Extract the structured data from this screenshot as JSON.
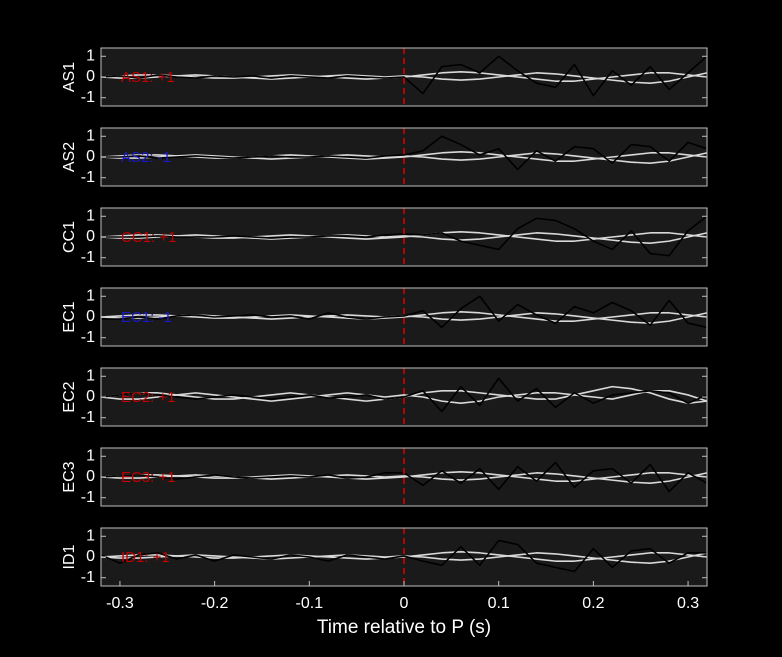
{
  "chart_data": [
    {
      "type": "line",
      "ylabel": "AS1",
      "annotation": "AS1: +1",
      "annotation_color": "#c00000",
      "x": [
        -0.32,
        -0.3,
        -0.28,
        -0.26,
        -0.24,
        -0.22,
        -0.2,
        -0.18,
        -0.16,
        -0.14,
        -0.12,
        -0.1,
        -0.08,
        -0.06,
        -0.04,
        -0.02,
        0,
        0.02,
        0.04,
        0.06,
        0.08,
        0.1,
        0.12,
        0.14,
        0.16,
        0.18,
        0.2,
        0.22,
        0.24,
        0.26,
        0.28,
        0.3,
        0.32
      ],
      "series": [
        {
          "color": "#d9d9d9",
          "values": [
            0,
            0.05,
            0.1,
            0.1,
            0.05,
            0,
            -0.05,
            -0.05,
            0,
            0.05,
            0.1,
            0.05,
            0,
            -0.05,
            -0.1,
            -0.05,
            0,
            0.1,
            0.2,
            0.25,
            0.2,
            0.1,
            0,
            -0.1,
            -0.2,
            -0.2,
            -0.1,
            0,
            0.1,
            0.2,
            0.2,
            0.1,
            0
          ]
        },
        {
          "color": "#d9d9d9",
          "values": [
            0,
            -0.05,
            -0.05,
            0,
            0.05,
            0.1,
            0.05,
            0,
            -0.05,
            -0.1,
            -0.05,
            0,
            0.05,
            0.1,
            0.05,
            0,
            0.05,
            0,
            -0.1,
            -0.15,
            -0.1,
            0,
            0.1,
            0.2,
            0.15,
            0.05,
            -0.05,
            -0.15,
            -0.25,
            -0.3,
            -0.2,
            0,
            0.2
          ]
        },
        {
          "color": "#000000",
          "values": [
            0,
            0.05,
            -0.05,
            0.1,
            0,
            -0.05,
            0.05,
            0,
            0.05,
            -0.05,
            0.05,
            0,
            -0.05,
            0.05,
            0,
            -0.05,
            0,
            -0.8,
            0.5,
            0.6,
            0.2,
            1.0,
            0.3,
            -0.3,
            -0.5,
            0.6,
            -0.9,
            0.3,
            -0.4,
            0.5,
            -0.6,
            0.2,
            1.0
          ]
        }
      ],
      "vline": 0,
      "vline_color": "#e00000",
      "xlim": [
        -0.32,
        0.32
      ],
      "ylim": [
        -1.4,
        1.4
      ],
      "yticks": [
        -1,
        0,
        1
      ]
    },
    {
      "type": "line",
      "ylabel": "AS2",
      "annotation": "AS2: -1",
      "annotation_color": "#1a1ac8",
      "x": [
        -0.32,
        -0.3,
        -0.28,
        -0.26,
        -0.24,
        -0.22,
        -0.2,
        -0.18,
        -0.16,
        -0.14,
        -0.12,
        -0.1,
        -0.08,
        -0.06,
        -0.04,
        -0.02,
        0,
        0.02,
        0.04,
        0.06,
        0.08,
        0.1,
        0.12,
        0.14,
        0.16,
        0.18,
        0.2,
        0.22,
        0.24,
        0.26,
        0.28,
        0.3,
        0.32
      ],
      "series": [
        {
          "color": "#d9d9d9",
          "values": [
            0,
            0.05,
            0.1,
            0.1,
            0.05,
            0,
            -0.05,
            -0.05,
            0,
            0.05,
            0.1,
            0.05,
            0,
            -0.05,
            -0.1,
            -0.05,
            0,
            0.1,
            0.2,
            0.25,
            0.2,
            0.1,
            0,
            -0.1,
            -0.2,
            -0.2,
            -0.1,
            0,
            0.1,
            0.2,
            0.2,
            0.1,
            0
          ]
        },
        {
          "color": "#d9d9d9",
          "values": [
            0,
            -0.05,
            -0.05,
            0,
            0.05,
            0.1,
            0.05,
            0,
            -0.05,
            -0.1,
            -0.05,
            0,
            0.05,
            0.1,
            0.05,
            0,
            0.05,
            0,
            -0.1,
            -0.15,
            -0.1,
            0,
            0.1,
            0.2,
            0.15,
            0.05,
            -0.05,
            -0.15,
            -0.25,
            -0.3,
            -0.2,
            0,
            0.2
          ]
        },
        {
          "color": "#000000",
          "values": [
            0,
            0,
            0.05,
            -0.05,
            0,
            0.05,
            0,
            -0.05,
            0,
            0.05,
            0,
            0,
            0.05,
            0,
            -0.05,
            0.05,
            0.1,
            0.3,
            1.0,
            0.6,
            0.1,
            0.4,
            -0.6,
            0.3,
            -0.2,
            0.5,
            0.4,
            -0.3,
            0.6,
            0.5,
            -0.2,
            0.7,
            0.4
          ]
        }
      ],
      "vline": 0,
      "vline_color": "#e00000",
      "xlim": [
        -0.32,
        0.32
      ],
      "ylim": [
        -1.4,
        1.4
      ],
      "yticks": [
        -1,
        0,
        1
      ]
    },
    {
      "type": "line",
      "ylabel": "CC1",
      "annotation": "CC1: +1",
      "annotation_color": "#c00000",
      "x": [
        -0.32,
        -0.3,
        -0.28,
        -0.26,
        -0.24,
        -0.22,
        -0.2,
        -0.18,
        -0.16,
        -0.14,
        -0.12,
        -0.1,
        -0.08,
        -0.06,
        -0.04,
        -0.02,
        0,
        0.02,
        0.04,
        0.06,
        0.08,
        0.1,
        0.12,
        0.14,
        0.16,
        0.18,
        0.2,
        0.22,
        0.24,
        0.26,
        0.28,
        0.3,
        0.32
      ],
      "series": [
        {
          "color": "#d9d9d9",
          "values": [
            0,
            0.05,
            0.1,
            0.1,
            0.05,
            0,
            -0.05,
            -0.05,
            0,
            0.05,
            0.1,
            0.05,
            0,
            -0.05,
            -0.1,
            -0.05,
            0,
            0.1,
            0.2,
            0.25,
            0.2,
            0.1,
            0,
            -0.1,
            -0.2,
            -0.2,
            -0.1,
            0,
            0.1,
            0.2,
            0.2,
            0.1,
            0
          ]
        },
        {
          "color": "#d9d9d9",
          "values": [
            0,
            -0.05,
            -0.05,
            0,
            0.05,
            0.1,
            0.05,
            0,
            -0.05,
            -0.1,
            -0.05,
            0,
            0.05,
            0.1,
            0.05,
            0,
            0.05,
            0,
            -0.1,
            -0.15,
            -0.1,
            0,
            0.1,
            0.2,
            0.15,
            0.05,
            -0.05,
            -0.15,
            -0.25,
            -0.3,
            -0.2,
            0,
            0.2
          ]
        },
        {
          "color": "#000000",
          "values": [
            0,
            0,
            0,
            0.05,
            0,
            0,
            0,
            0.05,
            0,
            -0.05,
            0,
            0,
            0.05,
            0.05,
            0,
            0.1,
            0.15,
            0.1,
            0.2,
            -0.2,
            -0.4,
            -0.6,
            0.4,
            0.9,
            0.8,
            0.4,
            -0.2,
            -0.6,
            0.3,
            -0.8,
            -0.9,
            0.3,
            1.0
          ]
        }
      ],
      "vline": 0,
      "vline_color": "#e00000",
      "xlim": [
        -0.32,
        0.32
      ],
      "ylim": [
        -1.4,
        1.4
      ],
      "yticks": [
        -1,
        0,
        1
      ]
    },
    {
      "type": "line",
      "ylabel": "EC1",
      "annotation": "EC1: -1",
      "annotation_color": "#1a1ac8",
      "x": [
        -0.32,
        -0.3,
        -0.28,
        -0.26,
        -0.24,
        -0.22,
        -0.2,
        -0.18,
        -0.16,
        -0.14,
        -0.12,
        -0.1,
        -0.08,
        -0.06,
        -0.04,
        -0.02,
        0,
        0.02,
        0.04,
        0.06,
        0.08,
        0.1,
        0.12,
        0.14,
        0.16,
        0.18,
        0.2,
        0.22,
        0.24,
        0.26,
        0.28,
        0.3,
        0.32
      ],
      "series": [
        {
          "color": "#d9d9d9",
          "values": [
            0,
            0.05,
            0.1,
            0.1,
            0.05,
            0,
            -0.05,
            -0.05,
            0,
            0.05,
            0.1,
            0.05,
            0,
            -0.05,
            -0.1,
            -0.05,
            0,
            0.1,
            0.2,
            0.25,
            0.2,
            0.1,
            0,
            -0.1,
            -0.2,
            -0.2,
            -0.1,
            0,
            0.1,
            0.2,
            0.2,
            0.1,
            0
          ]
        },
        {
          "color": "#d9d9d9",
          "values": [
            0,
            -0.05,
            -0.05,
            0,
            0.05,
            0.1,
            0.05,
            0,
            -0.05,
            -0.1,
            -0.05,
            0,
            0.05,
            0.1,
            0.05,
            0,
            0.05,
            0,
            -0.1,
            -0.15,
            -0.1,
            0,
            0.1,
            0.2,
            0.15,
            0.05,
            -0.05,
            -0.15,
            -0.25,
            -0.3,
            -0.2,
            0,
            0.2
          ]
        },
        {
          "color": "#000000",
          "values": [
            -0.1,
            -0.1,
            0,
            -0.1,
            0.05,
            0.1,
            0,
            0.05,
            0.1,
            0,
            0.05,
            -0.1,
            0.2,
            0,
            -0.1,
            0,
            0.05,
            0.3,
            -0.5,
            0.4,
            1.0,
            -0.2,
            0.6,
            0.1,
            -0.3,
            0.5,
            0.2,
            0.7,
            0.3,
            -0.4,
            0.8,
            -0.3,
            -0.5
          ]
        }
      ],
      "vline": 0,
      "vline_color": "#e00000",
      "xlim": [
        -0.32,
        0.32
      ],
      "ylim": [
        -1.4,
        1.4
      ],
      "yticks": [
        -1,
        0,
        1
      ]
    },
    {
      "type": "line",
      "ylabel": "EC2",
      "annotation": "EC2: +1",
      "annotation_color": "#c00000",
      "x": [
        -0.32,
        -0.3,
        -0.28,
        -0.26,
        -0.24,
        -0.22,
        -0.2,
        -0.18,
        -0.16,
        -0.14,
        -0.12,
        -0.1,
        -0.08,
        -0.06,
        -0.04,
        -0.02,
        0,
        0.02,
        0.04,
        0.06,
        0.08,
        0.1,
        0.12,
        0.14,
        0.16,
        0.18,
        0.2,
        0.22,
        0.24,
        0.26,
        0.28,
        0.3,
        0.32
      ],
      "series": [
        {
          "color": "#d9d9d9",
          "values": [
            0,
            0.1,
            0.2,
            0.2,
            0.1,
            0,
            -0.1,
            -0.1,
            0,
            0.1,
            0.2,
            0.1,
            0,
            -0.1,
            -0.2,
            -0.1,
            0,
            0.2,
            0.3,
            0.3,
            0.2,
            0.1,
            0,
            -0.1,
            -0.1,
            0.1,
            0.3,
            0.5,
            0.4,
            0.2,
            -0.1,
            -0.3,
            -0.2
          ]
        },
        {
          "color": "#d9d9d9",
          "values": [
            0,
            -0.1,
            -0.1,
            0,
            0.1,
            0.2,
            0.1,
            0,
            -0.1,
            -0.2,
            -0.1,
            0,
            0.1,
            0.2,
            0.1,
            0,
            0.1,
            0,
            -0.2,
            -0.3,
            -0.2,
            0,
            0.1,
            0.2,
            0.2,
            0.1,
            0,
            -0.1,
            0.1,
            0.3,
            0.3,
            0.1,
            -0.2
          ]
        },
        {
          "color": "#000000",
          "values": [
            0,
            0.1,
            0.2,
            0.1,
            0,
            -0.1,
            0,
            0.1,
            0,
            -0.1,
            0,
            0.1,
            -0.05,
            0,
            0.1,
            -0.1,
            0,
            0.3,
            -0.7,
            0.5,
            -0.4,
            0.9,
            -0.2,
            0.4,
            -0.5,
            0.2,
            -0.3,
            0.1,
            0.2,
            0.3,
            0.2,
            -0.3,
            0.1
          ]
        }
      ],
      "vline": 0,
      "vline_color": "#e00000",
      "xlim": [
        -0.32,
        0.32
      ],
      "ylim": [
        -1.4,
        1.4
      ],
      "yticks": [
        -1,
        0,
        1
      ]
    },
    {
      "type": "line",
      "ylabel": "EC3",
      "annotation": "EC3: +1",
      "annotation_color": "#c00000",
      "x": [
        -0.32,
        -0.3,
        -0.28,
        -0.26,
        -0.24,
        -0.22,
        -0.2,
        -0.18,
        -0.16,
        -0.14,
        -0.12,
        -0.1,
        -0.08,
        -0.06,
        -0.04,
        -0.02,
        0,
        0.02,
        0.04,
        0.06,
        0.08,
        0.1,
        0.12,
        0.14,
        0.16,
        0.18,
        0.2,
        0.22,
        0.24,
        0.26,
        0.28,
        0.3,
        0.32
      ],
      "series": [
        {
          "color": "#d9d9d9",
          "values": [
            0,
            0.05,
            0.1,
            0.1,
            0.05,
            0,
            -0.05,
            -0.05,
            0,
            0.05,
            0.1,
            0.05,
            0,
            -0.05,
            -0.1,
            -0.05,
            0,
            0.1,
            0.2,
            0.25,
            0.2,
            0.1,
            0,
            -0.1,
            -0.2,
            -0.2,
            -0.1,
            0,
            0.1,
            0.2,
            0.2,
            0.1,
            0
          ]
        },
        {
          "color": "#d9d9d9",
          "values": [
            0,
            -0.05,
            -0.05,
            0,
            0.05,
            0.1,
            0.05,
            0,
            -0.05,
            -0.1,
            -0.05,
            0,
            0.05,
            0.1,
            0.05,
            0,
            0.05,
            0,
            -0.1,
            -0.15,
            -0.1,
            0,
            0.1,
            0.2,
            0.15,
            0.05,
            -0.05,
            -0.15,
            -0.25,
            -0.3,
            -0.2,
            0,
            0.2
          ]
        },
        {
          "color": "#000000",
          "values": [
            0,
            0.05,
            0.1,
            0,
            -0.1,
            0,
            0.1,
            0,
            -0.05,
            0,
            0.05,
            0,
            0.1,
            -0.05,
            0,
            0.2,
            0.2,
            -0.4,
            0.3,
            -0.3,
            0.4,
            -0.6,
            0.5,
            -0.2,
            0.7,
            -0.5,
            0.3,
            0.4,
            -0.3,
            0.6,
            -0.7,
            0.2,
            -0.3
          ]
        }
      ],
      "vline": 0,
      "vline_color": "#e00000",
      "xlim": [
        -0.32,
        0.32
      ],
      "ylim": [
        -1.4,
        1.4
      ],
      "yticks": [
        -1,
        0,
        1
      ]
    },
    {
      "type": "line",
      "ylabel": "ID1",
      "annotation": "ID1: +1",
      "annotation_color": "#c00000",
      "x": [
        -0.32,
        -0.3,
        -0.28,
        -0.26,
        -0.24,
        -0.22,
        -0.2,
        -0.18,
        -0.16,
        -0.14,
        -0.12,
        -0.1,
        -0.08,
        -0.06,
        -0.04,
        -0.02,
        0,
        0.02,
        0.04,
        0.06,
        0.08,
        0.1,
        0.12,
        0.14,
        0.16,
        0.18,
        0.2,
        0.22,
        0.24,
        0.26,
        0.28,
        0.3,
        0.32
      ],
      "series": [
        {
          "color": "#d9d9d9",
          "values": [
            0,
            0.05,
            0.1,
            0.1,
            0.05,
            0,
            -0.05,
            -0.05,
            0,
            0.05,
            0.1,
            0.05,
            0,
            -0.05,
            -0.1,
            -0.05,
            0,
            0.1,
            0.2,
            0.25,
            0.2,
            0.1,
            0,
            -0.1,
            -0.2,
            -0.2,
            -0.1,
            0,
            0.1,
            0.2,
            0.2,
            0.1,
            0
          ]
        },
        {
          "color": "#d9d9d9",
          "values": [
            0,
            -0.05,
            -0.05,
            0,
            0.05,
            0.1,
            0.05,
            0,
            -0.05,
            -0.1,
            -0.05,
            0,
            0.05,
            0.1,
            0.05,
            0,
            0.05,
            0,
            -0.1,
            -0.15,
            -0.1,
            0,
            0.1,
            0.2,
            0.15,
            0.05,
            -0.05,
            -0.15,
            -0.25,
            -0.3,
            -0.2,
            0,
            0.2
          ]
        },
        {
          "color": "#000000",
          "values": [
            0.1,
            -0.3,
            0.1,
            0.2,
            -0.1,
            0.1,
            -0.2,
            0.1,
            0,
            -0.1,
            0.1,
            0,
            -0.2,
            0.1,
            0,
            -0.1,
            0.05,
            -0.2,
            -0.4,
            0.5,
            -0.4,
            0.8,
            0.6,
            -0.3,
            -0.5,
            -0.7,
            0.4,
            -0.5,
            0.3,
            0.4,
            -0.3,
            0.2,
            0.2
          ]
        }
      ],
      "vline": 0,
      "vline_color": "#e00000",
      "xlim": [
        -0.32,
        0.32
      ],
      "ylim": [
        -1.4,
        1.4
      ],
      "yticks": [
        -1,
        0,
        1
      ],
      "xticks": [
        -0.3,
        -0.2,
        -0.1,
        0,
        0.1,
        0.2,
        0.3
      ],
      "xlabel": "Time relative to P (s)"
    }
  ]
}
